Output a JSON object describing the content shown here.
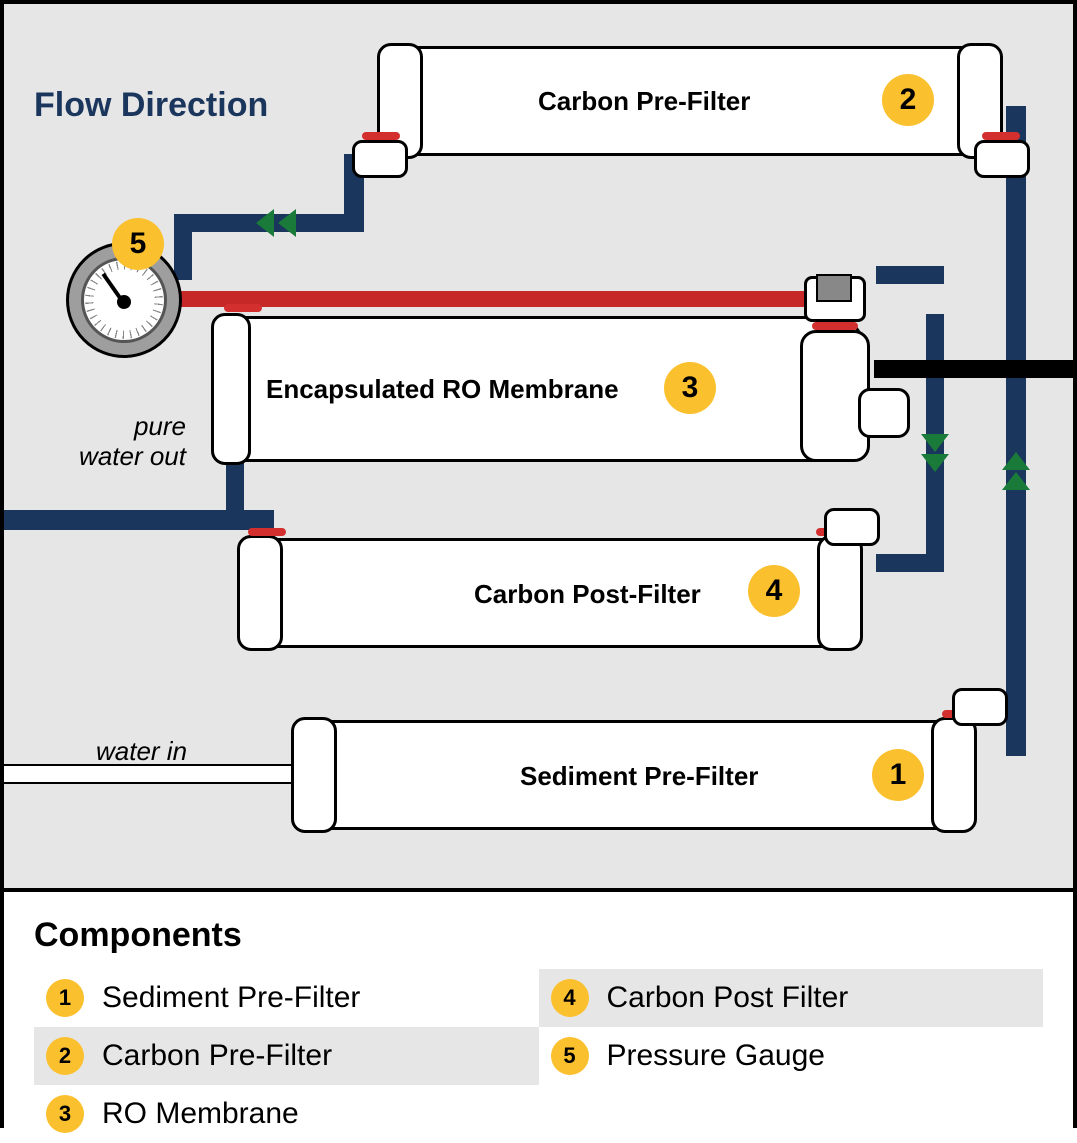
{
  "diagram": {
    "title": "Flow Direction",
    "pure_out_label": "pure\nwater out",
    "water_in_label": "water in",
    "colors": {
      "bg": "#e6e6e6",
      "blue_pipe": "#1b365d",
      "red_pipe": "#c62828",
      "arrow": "#1a7a3a",
      "badge": "#fbc02d",
      "title_color": "#1b365d"
    },
    "filters": {
      "sediment": {
        "num": "1",
        "label": "Sediment Pre-Filter"
      },
      "carbon_pre": {
        "num": "2",
        "label": "Carbon Pre-Filter"
      },
      "ro": {
        "num": "3",
        "label": "Encapsulated RO Membrane"
      },
      "carbon_post": {
        "num": "4",
        "label": "Carbon Post-Filter"
      },
      "gauge": {
        "num": "5",
        "label": "Pressure Gauge"
      }
    }
  },
  "legend": {
    "title": "Components",
    "items": [
      {
        "num": "1",
        "label": "Sediment Pre-Filter",
        "shade": false
      },
      {
        "num": "4",
        "label": "Carbon Post Filter",
        "shade": true
      },
      {
        "num": "2",
        "label": "Carbon Pre-Filter",
        "shade": true
      },
      {
        "num": "5",
        "label": "Pressure Gauge",
        "shade": false
      },
      {
        "num": "3",
        "label": "RO Membrane",
        "shade": false
      }
    ]
  }
}
